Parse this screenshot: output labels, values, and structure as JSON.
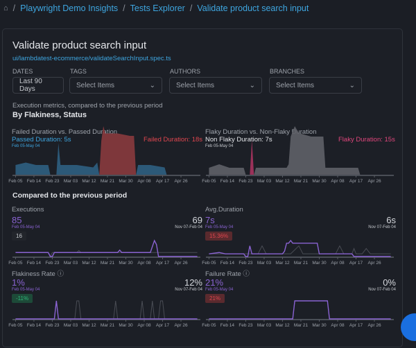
{
  "breadcrumb": {
    "home_icon": "home-icon",
    "items": [
      "Playwright Demo Insights",
      "Tests Explorer",
      "Validate product search input"
    ],
    "separator": "/"
  },
  "header": {
    "title": "Validate product search input",
    "spec_path": "ui/lambdatest-ecommerce/validateSearchInput.spec.ts"
  },
  "filters": {
    "dates": {
      "label": "DATES",
      "value": "Last 90 Days"
    },
    "tags": {
      "label": "TAGS",
      "placeholder": "Select Items"
    },
    "authors": {
      "label": "AUTHORS",
      "placeholder": "Select Items"
    },
    "branches": {
      "label": "BRANCHES",
      "placeholder": "Select Items"
    }
  },
  "metrics": {
    "subtitle": "Execution metrics, compared to the previous period",
    "heading": "By Flakiness, Status"
  },
  "compare_heading": "Compared to the previous period",
  "colors": {
    "accent": "#3ea6e0",
    "failed": "#e0464f",
    "flaky": "#e0467c",
    "purple": "#8a63d2",
    "positive": "#2fb87a"
  },
  "x_ticks": [
    "Feb 05",
    "Feb 14",
    "Feb 23",
    "Mar 03",
    "Mar 12",
    "Mar 21",
    "Mar 30",
    "Apr 08",
    "Apr 17",
    "Apr 26"
  ],
  "chart_data": [
    {
      "type": "area",
      "title": "Failed Duration vs. Passed Duration",
      "left_label": "Passed Duration: 5s",
      "right_label": "Failed Duration: 18s",
      "range": "Feb 05-May 04",
      "series": [
        {
          "name": "Passed Duration",
          "color": "#2f5f82",
          "points": [
            [
              0,
              4
            ],
            [
              5,
              5
            ],
            [
              10,
              4
            ],
            [
              16,
              4
            ],
            [
              17,
              0
            ],
            [
              20,
              0
            ],
            [
              21,
              13
            ],
            [
              22,
              4
            ],
            [
              30,
              4
            ],
            [
              38,
              3
            ],
            [
              40,
              5
            ],
            [
              41,
              0
            ],
            [
              59,
              0
            ],
            [
              60,
              4
            ],
            [
              66,
              4
            ],
            [
              73,
              3
            ],
            [
              74,
              0
            ]
          ]
        },
        {
          "name": "Failed Duration",
          "color": "#8a3a3e",
          "points": [
            [
              41,
              0
            ],
            [
              42,
              14
            ],
            [
              43,
              20
            ],
            [
              44,
              17
            ],
            [
              50,
              17
            ],
            [
              56,
              16
            ],
            [
              58,
              16
            ],
            [
              59,
              0
            ]
          ]
        }
      ]
    },
    {
      "type": "area",
      "title": "Flaky Duration vs. Non-Flaky Duration",
      "left_label": "Non Flaky Duration: 7s",
      "right_label": "Flaky Duration: 15s",
      "range": "Feb 05-May 04",
      "series": [
        {
          "name": "Non Flaky Duration",
          "color": "#5f6168",
          "points": [
            [
              0,
              2
            ],
            [
              5,
              3
            ],
            [
              10,
              2
            ],
            [
              17,
              2
            ],
            [
              18,
              0
            ],
            [
              22,
              0
            ],
            [
              23,
              2
            ],
            [
              30,
              2
            ],
            [
              38,
              2
            ],
            [
              39,
              3
            ],
            [
              40,
              11
            ],
            [
              42,
              14
            ],
            [
              44,
              12
            ],
            [
              50,
              11
            ],
            [
              56,
              11
            ],
            [
              57,
              2
            ],
            [
              65,
              2
            ],
            [
              73,
              2
            ],
            [
              74,
              0
            ]
          ]
        },
        {
          "name": "Flaky Duration",
          "color": "#a8335f",
          "points": [
            [
              20,
              0
            ],
            [
              21,
              10
            ],
            [
              22,
              0
            ]
          ]
        }
      ]
    },
    {
      "type": "line",
      "title": "Executions",
      "value": "85",
      "range": "Feb 05-May 04",
      "prev_value": "69",
      "prev_range": "Nov 07-Feb 04",
      "badge": "16",
      "badge_type": "neutral",
      "series": [
        {
          "name": "current",
          "color": "#8a63d2",
          "points": [
            [
              0,
              1
            ],
            [
              16,
              1
            ],
            [
              17,
              0
            ],
            [
              18,
              0
            ],
            [
              19,
              1
            ],
            [
              50,
              1
            ],
            [
              51,
              1.6
            ],
            [
              52,
              1
            ],
            [
              66,
              1
            ],
            [
              68,
              4
            ],
            [
              69,
              3
            ],
            [
              70,
              0
            ],
            [
              89,
              0
            ]
          ]
        },
        {
          "name": "previous",
          "color": "#4a4d55",
          "points": [
            [
              0,
              1
            ],
            [
              16,
              1
            ],
            [
              17,
              0
            ],
            [
              18,
              1
            ],
            [
              30,
              1
            ],
            [
              31,
              1.5
            ],
            [
              32,
              1
            ],
            [
              89,
              1
            ]
          ]
        }
      ]
    },
    {
      "type": "line",
      "title": "Avg.Duration",
      "value": "7s",
      "range": "Feb 05-May 04",
      "prev_value": "6s",
      "prev_range": "Nov 07-Feb 04",
      "badge": "15.36%",
      "badge_type": "negative",
      "series": [
        {
          "name": "current",
          "color": "#8a63d2",
          "points": [
            [
              0,
              1
            ],
            [
              5,
              1.5
            ],
            [
              8,
              1
            ],
            [
              17,
              1
            ],
            [
              18,
              0
            ],
            [
              19,
              0
            ],
            [
              20,
              4
            ],
            [
              21,
              1
            ],
            [
              30,
              1
            ],
            [
              36,
              1
            ],
            [
              37,
              2
            ],
            [
              38,
              5
            ],
            [
              39,
              5
            ],
            [
              40,
              6
            ],
            [
              41,
              5
            ],
            [
              50,
              5
            ],
            [
              53,
              5
            ],
            [
              54,
              1
            ],
            [
              60,
              1
            ],
            [
              70,
              1
            ],
            [
              71,
              0
            ],
            [
              89,
              0
            ]
          ]
        },
        {
          "name": "previous",
          "color": "#4a4d55",
          "points": [
            [
              0,
              1
            ],
            [
              20,
              1
            ],
            [
              24,
              1
            ],
            [
              26,
              4
            ],
            [
              28,
              1
            ],
            [
              40,
              1
            ],
            [
              44,
              4
            ],
            [
              46,
              1
            ],
            [
              62,
              1
            ],
            [
              64,
              4
            ],
            [
              66,
              1
            ],
            [
              70,
              1
            ],
            [
              71,
              3
            ],
            [
              72,
              1
            ],
            [
              75,
              1
            ],
            [
              77,
              3
            ],
            [
              79,
              1
            ],
            [
              89,
              1
            ]
          ]
        }
      ]
    },
    {
      "type": "line",
      "title": "Flakiness Rate",
      "value": "1%",
      "range": "Feb 05-May 04",
      "prev_value": "12%",
      "prev_range": "Nov 07-Feb 04",
      "badge": "-11%",
      "badge_type": "positive",
      "series": [
        {
          "name": "current",
          "color": "#8a63d2",
          "points": [
            [
              0,
              0
            ],
            [
              19,
              0
            ],
            [
              20,
              1
            ],
            [
              21,
              0
            ],
            [
              89,
              0
            ]
          ]
        },
        {
          "name": "previous",
          "color": "#4a4d55",
          "points": [
            [
              0,
              0
            ],
            [
              29,
              0
            ],
            [
              30,
              1
            ],
            [
              31,
              1
            ],
            [
              32,
              0
            ],
            [
              48,
              0
            ],
            [
              49,
              1
            ],
            [
              50,
              0
            ],
            [
              61,
              0
            ],
            [
              62,
              1
            ],
            [
              63,
              0
            ],
            [
              66,
              0
            ],
            [
              67,
              1
            ],
            [
              68,
              0
            ],
            [
              70,
              0
            ],
            [
              71,
              1
            ],
            [
              72,
              1
            ],
            [
              73,
              0
            ],
            [
              89,
              0
            ]
          ]
        }
      ]
    },
    {
      "type": "line",
      "title": "Failure Rate",
      "value": "21%",
      "range": "Feb 05-May 04",
      "prev_value": "0%",
      "prev_range": "Nov 07-Feb 04",
      "badge": "21%",
      "badge_type": "negative",
      "series": [
        {
          "name": "current",
          "color": "#8a63d2",
          "points": [
            [
              0,
              0
            ],
            [
              41,
              0
            ],
            [
              42,
              1
            ],
            [
              58,
              1
            ],
            [
              59,
              0
            ],
            [
              89,
              0
            ]
          ]
        }
      ]
    }
  ]
}
